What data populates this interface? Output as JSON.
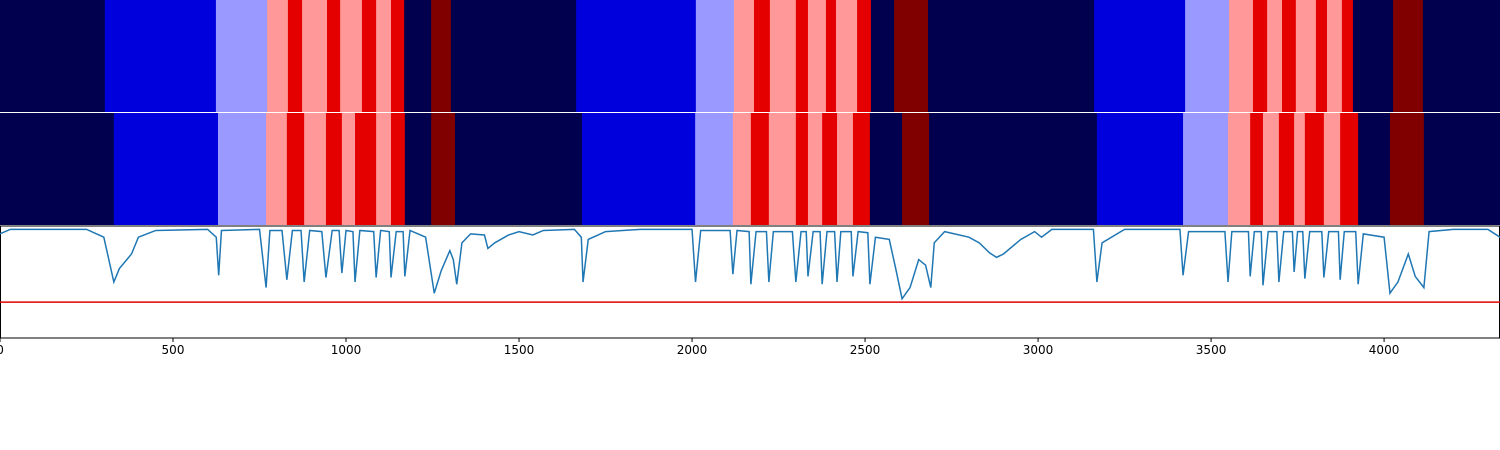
{
  "chart_data": {
    "type": "segmentation",
    "palette": [
      "#00004f",
      "#0000dd",
      "#9999ff",
      "#ff9999",
      "#e50000",
      "#800000"
    ],
    "bands": [
      {
        "edges": [
          0,
          303,
          624,
          772,
          832,
          873,
          945,
          983,
          1046,
          1087,
          1130,
          1168,
          1246,
          1303,
          1665,
          2011,
          2121,
          2179,
          2225,
          2300,
          2335,
          2387,
          2416,
          2477,
          2517,
          2584,
          2682,
          3162,
          3425,
          3552,
          3621,
          3662,
          3705,
          3745,
          3803,
          3835,
          3878,
          3910,
          4026,
          4112,
          4335
        ],
        "labels": [
          0,
          1,
          2,
          3,
          4,
          3,
          4,
          3,
          4,
          3,
          4,
          0,
          5,
          0,
          1,
          2,
          3,
          4,
          3,
          4,
          3,
          4,
          3,
          4,
          0,
          5,
          0,
          1,
          2,
          3,
          4,
          3,
          4,
          3,
          4,
          3,
          4,
          0,
          5,
          0
        ]
      },
      {
        "edges": [
          0,
          329,
          630,
          769,
          829,
          879,
          942,
          988,
          1026,
          1087,
          1130,
          1170,
          1246,
          1315,
          1682,
          2009,
          2118,
          2170,
          2222,
          2300,
          2335,
          2376,
          2419,
          2465,
          2514,
          2607,
          2685,
          3170,
          3419,
          3549,
          3613,
          3650,
          3696,
          3740,
          3771,
          3826,
          3873,
          3925,
          4017,
          4115,
          4335
        ],
        "labels": [
          0,
          1,
          2,
          3,
          4,
          3,
          4,
          3,
          4,
          3,
          4,
          0,
          5,
          0,
          1,
          2,
          3,
          4,
          3,
          4,
          3,
          4,
          3,
          4,
          0,
          5,
          0,
          1,
          2,
          3,
          4,
          3,
          4,
          3,
          4,
          3,
          4,
          0,
          5,
          0
        ]
      }
    ],
    "line": {
      "color": "#1f77b4",
      "x": [
        0,
        30,
        250,
        300,
        329,
        345,
        380,
        400,
        450,
        600,
        625,
        632,
        640,
        750,
        769,
        780,
        815,
        829,
        845,
        870,
        879,
        895,
        930,
        942,
        960,
        980,
        988,
        1000,
        1020,
        1026,
        1040,
        1080,
        1087,
        1100,
        1125,
        1130,
        1145,
        1165,
        1170,
        1185,
        1230,
        1255,
        1275,
        1300,
        1310,
        1320,
        1335,
        1360,
        1400,
        1410,
        1430,
        1470,
        1500,
        1540,
        1570,
        1660,
        1680,
        1685,
        1700,
        1750,
        1850,
        2000,
        2010,
        2025,
        2110,
        2118,
        2130,
        2165,
        2170,
        2185,
        2215,
        2222,
        2235,
        2290,
        2300,
        2315,
        2330,
        2335,
        2350,
        2370,
        2376,
        2390,
        2412,
        2419,
        2430,
        2460,
        2465,
        2480,
        2508,
        2514,
        2530,
        2570,
        2590,
        2607,
        2630,
        2655,
        2675,
        2690,
        2700,
        2730,
        2800,
        2830,
        2860,
        2880,
        2900,
        2950,
        2990,
        3010,
        3040,
        3160,
        3170,
        3185,
        3250,
        3410,
        3419,
        3435,
        3540,
        3549,
        3560,
        3608,
        3613,
        3625,
        3645,
        3650,
        3665,
        3690,
        3696,
        3710,
        3735,
        3740,
        3750,
        3765,
        3771,
        3785,
        3820,
        3826,
        3840,
        3868,
        3873,
        3885,
        3918,
        3925,
        3940,
        4000,
        4017,
        4040,
        4070,
        4090,
        4115,
        4130,
        4200,
        4300,
        4335
      ],
      "values": [
        0.93,
        0.97,
        0.97,
        0.9,
        0.5,
        0.62,
        0.75,
        0.9,
        0.96,
        0.97,
        0.9,
        0.56,
        0.96,
        0.97,
        0.45,
        0.96,
        0.96,
        0.52,
        0.96,
        0.96,
        0.5,
        0.96,
        0.95,
        0.54,
        0.96,
        0.96,
        0.58,
        0.96,
        0.95,
        0.5,
        0.96,
        0.95,
        0.54,
        0.96,
        0.95,
        0.54,
        0.95,
        0.95,
        0.55,
        0.96,
        0.9,
        0.4,
        0.6,
        0.78,
        0.7,
        0.48,
        0.85,
        0.93,
        0.92,
        0.8,
        0.85,
        0.92,
        0.95,
        0.92,
        0.96,
        0.97,
        0.9,
        0.5,
        0.88,
        0.95,
        0.97,
        0.97,
        0.5,
        0.96,
        0.96,
        0.57,
        0.96,
        0.95,
        0.48,
        0.95,
        0.95,
        0.5,
        0.95,
        0.95,
        0.5,
        0.95,
        0.95,
        0.55,
        0.95,
        0.95,
        0.48,
        0.95,
        0.95,
        0.5,
        0.95,
        0.95,
        0.55,
        0.95,
        0.94,
        0.48,
        0.9,
        0.88,
        0.6,
        0.35,
        0.45,
        0.7,
        0.65,
        0.45,
        0.85,
        0.95,
        0.9,
        0.85,
        0.76,
        0.72,
        0.75,
        0.88,
        0.95,
        0.9,
        0.97,
        0.97,
        0.5,
        0.85,
        0.97,
        0.97,
        0.56,
        0.95,
        0.95,
        0.5,
        0.95,
        0.95,
        0.55,
        0.95,
        0.95,
        0.47,
        0.95,
        0.95,
        0.5,
        0.95,
        0.95,
        0.59,
        0.95,
        0.95,
        0.53,
        0.95,
        0.95,
        0.54,
        0.95,
        0.95,
        0.52,
        0.95,
        0.95,
        0.48,
        0.93,
        0.9,
        0.4,
        0.5,
        0.75,
        0.55,
        0.45,
        0.95,
        0.97,
        0.97,
        0.9
      ]
    },
    "threshold": {
      "value": 0.32,
      "color": "#e00000"
    },
    "xlim": [
      0,
      4335
    ],
    "ylim": [
      0,
      1
    ],
    "xticks": [
      0,
      500,
      1000,
      1500,
      2000,
      2500,
      3000,
      3500,
      4000
    ]
  }
}
